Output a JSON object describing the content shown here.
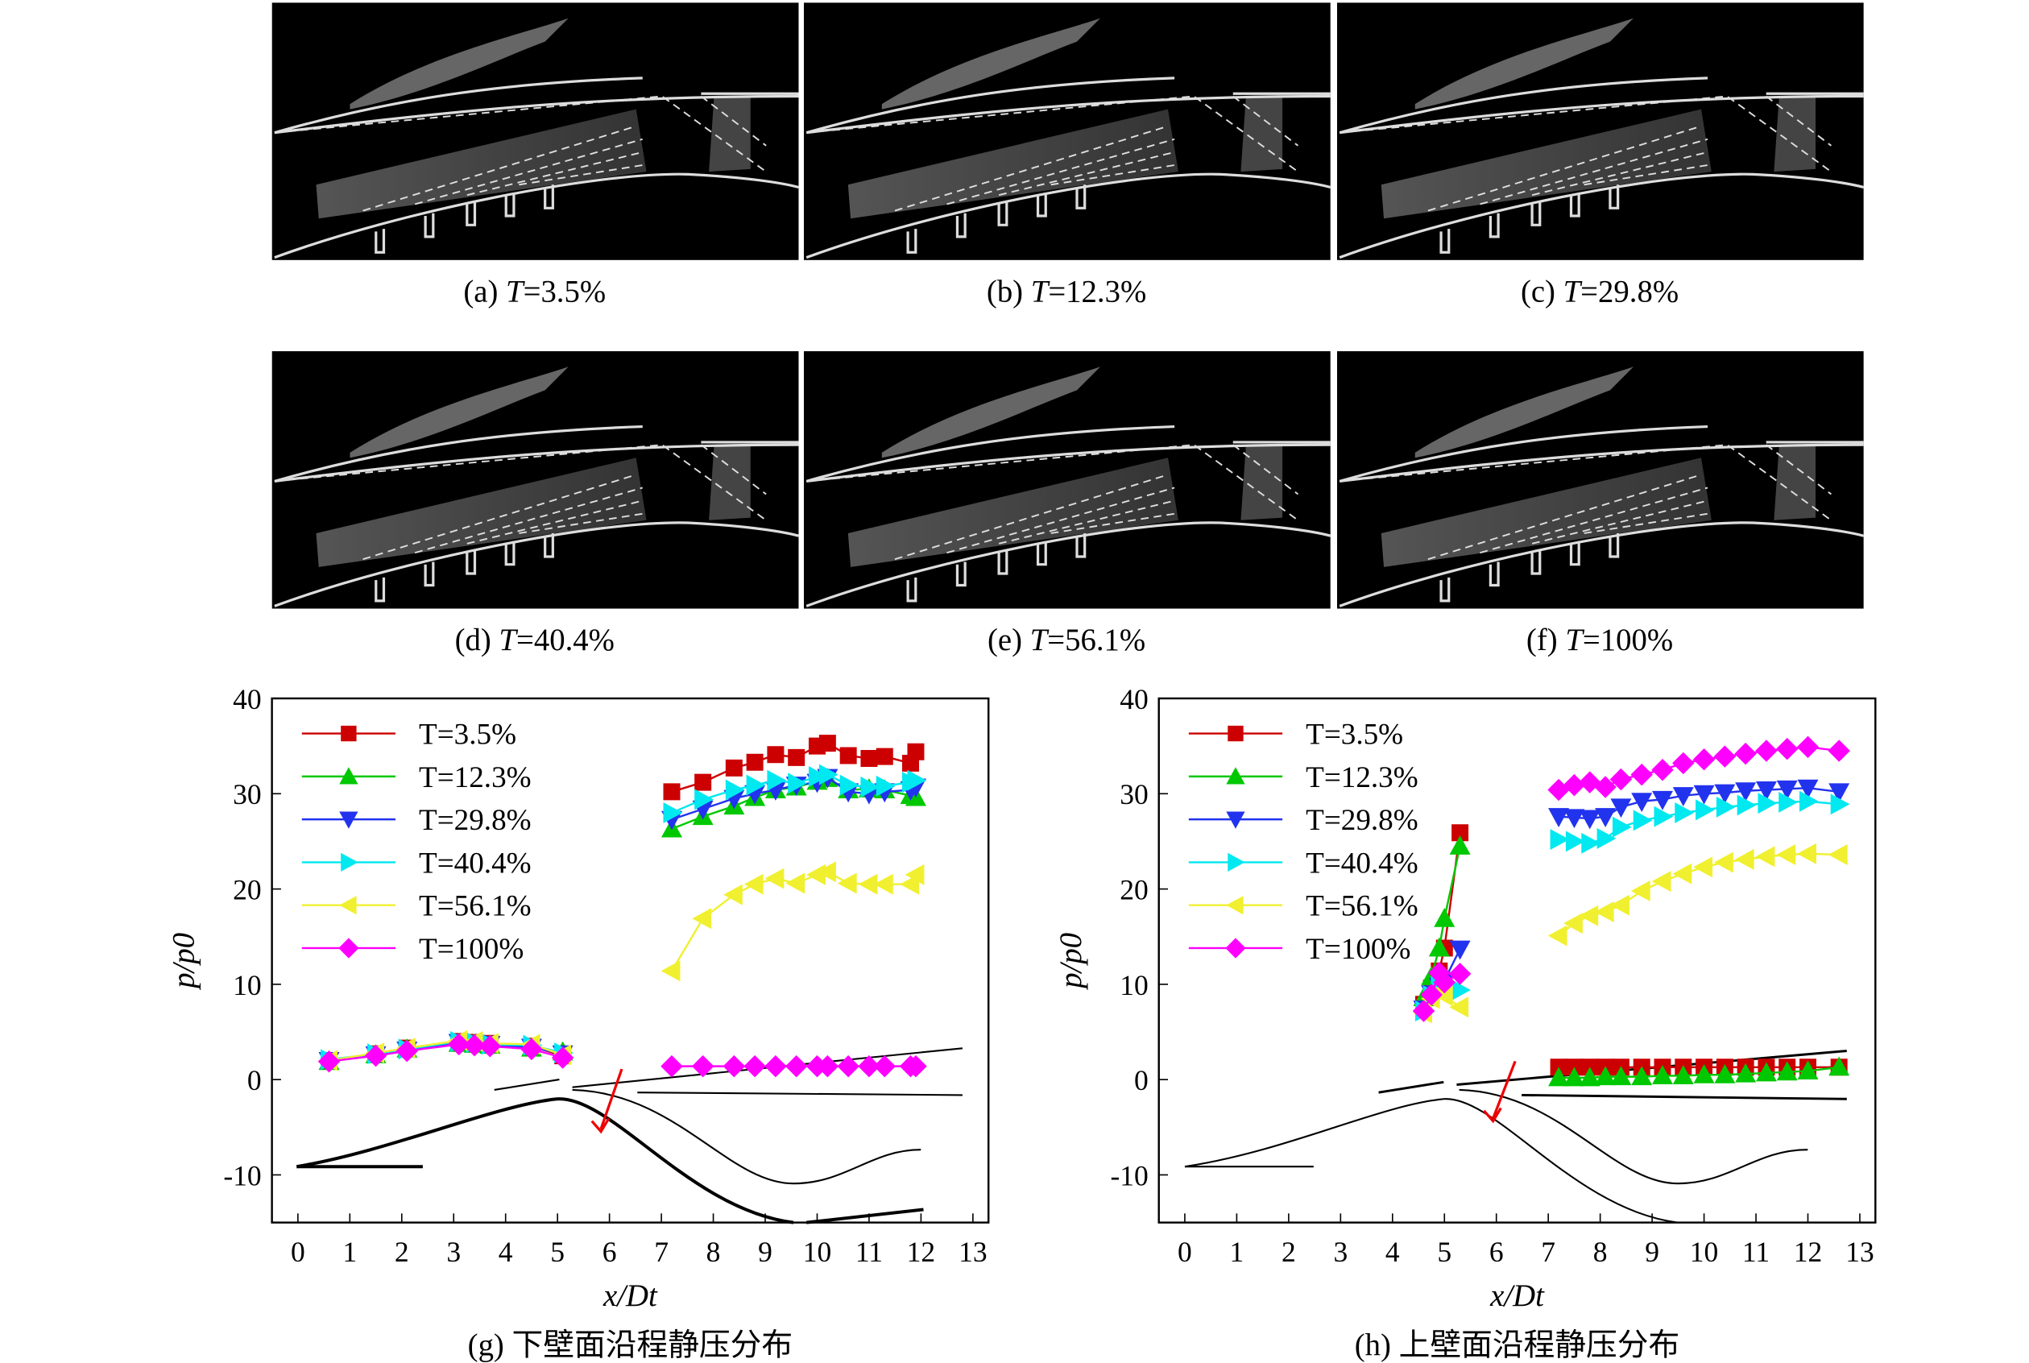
{
  "images": [
    {
      "letter": "(a)",
      "symbol": "T",
      "text": "=3.5%"
    },
    {
      "letter": "(b)",
      "symbol": "T",
      "text": "=12.3%"
    },
    {
      "letter": "(c)",
      "symbol": "T",
      "text": "=29.8%"
    },
    {
      "letter": "(d)",
      "symbol": "T",
      "text": "=40.4%"
    },
    {
      "letter": "(e)",
      "symbol": "T",
      "text": "=56.1%"
    },
    {
      "letter": "(f)",
      "symbol": "T",
      "text": "=100%"
    }
  ],
  "chart_data": [
    {
      "type": "line",
      "caption": "(g) 下壁面沿程静压分布",
      "xlabel": "x/Dt",
      "ylabel": "p/p0",
      "xlim": [
        -0.5,
        13.3
      ],
      "ylim": [
        -15,
        40
      ],
      "xticks": [
        0,
        1,
        2,
        3,
        4,
        5,
        6,
        7,
        8,
        9,
        10,
        11,
        12,
        13
      ],
      "yticks": [
        -10,
        0,
        10,
        20,
        30,
        40
      ],
      "legend": "upper left",
      "x": [
        0.6,
        1.5,
        2.1,
        3.1,
        3.4,
        3.7,
        4.5,
        5.1,
        null,
        7.2,
        7.8,
        8.4,
        8.8,
        9.2,
        9.6,
        10.0,
        10.2,
        10.6,
        11.0,
        11.3,
        11.8,
        11.9
      ],
      "series": [
        {
          "name": "T=3.5%",
          "color": "#cc0000",
          "marker": "square",
          "values": [
            2.0,
            2.7,
            3.3,
            4.0,
            3.9,
            3.8,
            3.5,
            2.5,
            null,
            30.2,
            31.2,
            32.7,
            33.3,
            34.1,
            33.8,
            35.0,
            35.3,
            34.0,
            33.7,
            33.9,
            33.2,
            34.4
          ]
        },
        {
          "name": "T=12.3%",
          "color": "#00c800",
          "marker": "up",
          "values": [
            1.9,
            2.6,
            3.2,
            3.8,
            3.7,
            3.6,
            3.3,
            2.9,
            null,
            26.3,
            27.6,
            28.7,
            29.6,
            30.4,
            30.7,
            31.3,
            31.6,
            30.4,
            30.5,
            30.4,
            29.8,
            29.6
          ]
        },
        {
          "name": "T=29.8%",
          "color": "#2233ee",
          "marker": "down",
          "values": [
            2.0,
            2.6,
            3.1,
            3.9,
            3.8,
            3.7,
            3.4,
            2.7,
            null,
            27.3,
            28.4,
            29.5,
            30.0,
            30.4,
            30.9,
            31.2,
            31.7,
            30.2,
            30.0,
            30.2,
            30.4,
            30.7
          ]
        },
        {
          "name": "T=40.4%",
          "color": "#00e8f0",
          "marker": "right",
          "values": [
            2.1,
            2.7,
            3.2,
            4.0,
            3.9,
            3.7,
            3.6,
            2.8,
            null,
            28.0,
            29.4,
            30.4,
            30.9,
            31.4,
            31.1,
            31.8,
            32.0,
            30.9,
            30.7,
            30.8,
            31.2,
            31.4
          ]
        },
        {
          "name": "T=56.1%",
          "color": "#f0f030",
          "marker": "left",
          "values": [
            2.0,
            2.8,
            3.3,
            4.1,
            4.0,
            3.8,
            3.7,
            2.6,
            null,
            11.4,
            16.9,
            19.4,
            20.5,
            21.1,
            20.6,
            21.5,
            21.8,
            20.6,
            20.5,
            20.5,
            20.5,
            21.5
          ]
        },
        {
          "name": "T=100%",
          "color": "#ff00ff",
          "marker": "diamond",
          "values": [
            1.9,
            2.5,
            3.0,
            3.7,
            3.6,
            3.5,
            3.2,
            2.3,
            null,
            1.4,
            1.4,
            1.4,
            1.4,
            1.4,
            1.4,
            1.4,
            1.4,
            1.4,
            1.4,
            1.4,
            1.4,
            1.4
          ]
        }
      ]
    },
    {
      "type": "line",
      "caption": "(h) 上壁面沿程静压分布",
      "xlabel": "x/Dt",
      "ylabel": "p/p0",
      "xlim": [
        -0.5,
        13.3
      ],
      "ylim": [
        -15,
        40
      ],
      "xticks": [
        0,
        1,
        2,
        3,
        4,
        5,
        6,
        7,
        8,
        9,
        10,
        11,
        12,
        13
      ],
      "yticks": [
        -10,
        0,
        10,
        20,
        30,
        40
      ],
      "legend": "upper left",
      "x": [
        4.6,
        4.75,
        4.9,
        5.0,
        5.3,
        null,
        7.2,
        7.5,
        7.8,
        8.1,
        8.4,
        8.8,
        9.2,
        9.6,
        10.0,
        10.4,
        10.8,
        11.2,
        11.6,
        12.0,
        12.6
      ],
      "series": [
        {
          "name": "T=3.5%",
          "color": "#cc0000",
          "marker": "square",
          "values": [
            7.9,
            9.6,
            11.4,
            13.8,
            25.9,
            null,
            1.3,
            1.3,
            1.3,
            1.3,
            1.3,
            1.3,
            1.3,
            1.3,
            1.3,
            1.3,
            1.3,
            1.3,
            1.3,
            1.3,
            1.3
          ]
        },
        {
          "name": "T=12.3%",
          "color": "#00c800",
          "marker": "up",
          "values": [
            8.6,
            10.8,
            13.8,
            16.9,
            24.5,
            null,
            0.2,
            0.2,
            0.2,
            0.3,
            0.3,
            0.3,
            0.4,
            0.4,
            0.5,
            0.5,
            0.6,
            0.7,
            0.8,
            0.9,
            1.3
          ]
        },
        {
          "name": "T=29.8%",
          "color": "#2233ee",
          "marker": "down",
          "values": [
            7.4,
            9.0,
            9.8,
            10.4,
            13.7,
            null,
            27.6,
            27.5,
            27.4,
            27.6,
            28.6,
            29.2,
            29.4,
            29.8,
            30.0,
            30.1,
            30.3,
            30.4,
            30.5,
            30.6,
            30.2
          ]
        },
        {
          "name": "T=40.4%",
          "color": "#00e8f0",
          "marker": "right",
          "values": [
            7.2,
            8.8,
            9.8,
            9.6,
            9.4,
            null,
            25.2,
            25.0,
            24.8,
            25.3,
            26.5,
            27.2,
            27.6,
            28.0,
            28.3,
            28.6,
            28.8,
            29.0,
            29.1,
            29.2,
            28.9
          ]
        },
        {
          "name": "T=56.1%",
          "color": "#f0f030",
          "marker": "left",
          "values": [
            7.0,
            8.5,
            9.2,
            8.8,
            7.6,
            null,
            15.1,
            16.4,
            17.2,
            17.6,
            18.3,
            19.8,
            20.8,
            21.6,
            22.3,
            22.8,
            23.1,
            23.4,
            23.6,
            23.7,
            23.6
          ]
        },
        {
          "name": "T=100%",
          "color": "#ff00ff",
          "marker": "diamond",
          "values": [
            7.2,
            8.9,
            11.2,
            10.2,
            11.1,
            null,
            30.4,
            30.9,
            31.2,
            30.7,
            31.5,
            32.0,
            32.5,
            33.2,
            33.6,
            33.9,
            34.2,
            34.5,
            34.7,
            34.9,
            34.5
          ]
        }
      ]
    }
  ]
}
